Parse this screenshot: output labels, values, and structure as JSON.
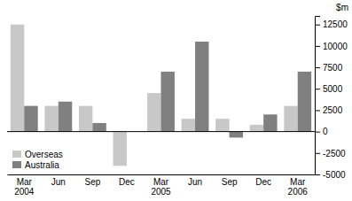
{
  "chart_data": {
    "type": "bar",
    "categories": [
      "Mar\n2004",
      "Jun",
      "Sep",
      "Dec",
      "Mar\n2005",
      "Jun",
      "Sep",
      "Dec",
      "Mar\n2006"
    ],
    "series": [
      {
        "name": "Overseas",
        "color": "#c8c8c8",
        "values": [
          12500,
          3000,
          3000,
          -4000,
          4500,
          1500,
          1500,
          800,
          3000
        ]
      },
      {
        "name": "Australia",
        "color": "#808080",
        "values": [
          3000,
          3500,
          1000,
          0,
          7000,
          10500,
          -700,
          2000,
          7000
        ]
      }
    ],
    "ylim": [
      -5000,
      13500
    ],
    "yticks": [
      -5000,
      -2500,
      0,
      2500,
      5000,
      7500,
      10000,
      12500
    ],
    "y_label": "$m",
    "legend": "lower left",
    "grid": false
  }
}
